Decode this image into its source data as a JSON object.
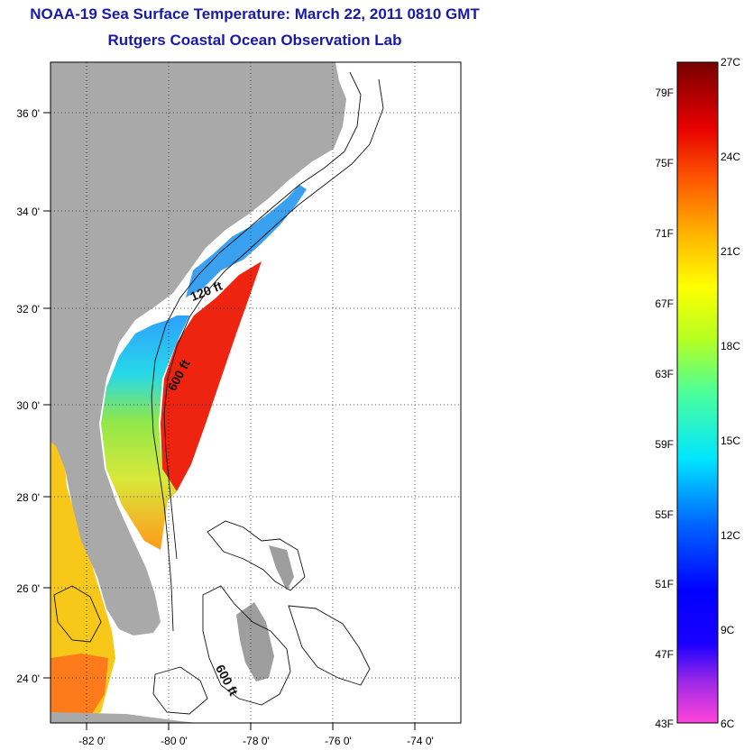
{
  "header": {
    "title": "NOAA-19 Sea Surface Temperature:  March 22, 2011 0810 GMT",
    "subtitle": "Rutgers Coastal Ocean Observation Lab"
  },
  "map": {
    "lat_labels": [
      "36 0'",
      "34 0'",
      "32 0'",
      "30 0'",
      "28 0'",
      "26 0'",
      "24 0'"
    ],
    "lon_labels": [
      "-82 0'",
      "-80 0'",
      "-78 0'",
      "-76 0'",
      "-74 0'"
    ],
    "contour_labels": [
      "120 ft",
      "600 ft",
      "600 ft"
    ],
    "land_color": "#a9a9a9",
    "ocean_color": "#ffffff"
  },
  "colorbar": {
    "fahrenheit_labels": [
      "79F",
      "75F",
      "71F",
      "67F",
      "63F",
      "59F",
      "55F",
      "51F",
      "47F",
      "43F"
    ],
    "celsius_labels": [
      "27C",
      "24C",
      "21C",
      "18C",
      "15C",
      "12C",
      "9C",
      "6C"
    ]
  }
}
